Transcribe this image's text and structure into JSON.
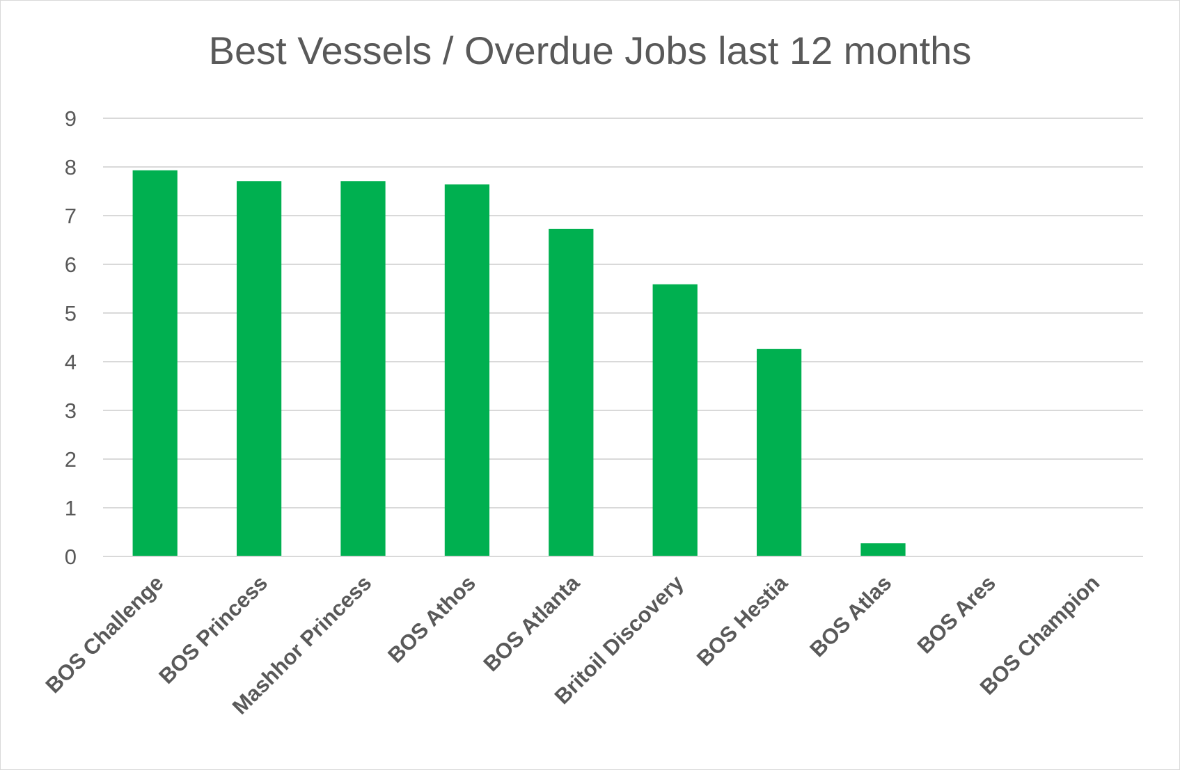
{
  "chart_data": {
    "type": "bar",
    "title": "Best Vessels / Overdue Jobs last 12 months",
    "xlabel": "",
    "ylabel": "",
    "categories": [
      "BOS Challenge",
      "BOS Princess",
      "Mashhor Princess",
      "BOS Athos",
      "BOS Atlanta",
      "Britoil Discovery",
      "BOS Hestia",
      "BOS Atlas",
      "BOS Ares",
      "BOS Champion"
    ],
    "values": [
      7.93,
      7.71,
      7.71,
      7.64,
      6.73,
      5.59,
      4.26,
      0.27,
      0,
      0
    ],
    "ylim": [
      0,
      9
    ],
    "yticks": [
      0,
      1,
      2,
      3,
      4,
      5,
      6,
      7,
      8,
      9
    ],
    "grid": true,
    "legend": "none",
    "colors": {
      "bar": "#00b050",
      "grid": "#d9d9d9",
      "text": "#595959"
    }
  }
}
